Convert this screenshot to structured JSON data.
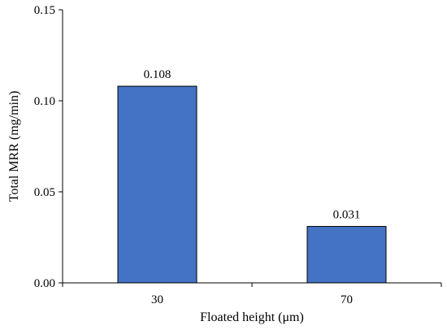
{
  "chart_data": {
    "type": "bar",
    "title": "",
    "xlabel": "Floated height (μm)",
    "ylabel": "Total MRR (mg/min)",
    "categories": [
      "30",
      "70"
    ],
    "values": [
      0.108,
      0.031
    ],
    "data_labels": [
      "0.108",
      "0.031"
    ],
    "ylim": [
      0,
      0.15
    ],
    "yticks": [
      0,
      0.05,
      0.1,
      0.15
    ],
    "ytick_labels": [
      "0.00",
      "0.05",
      "0.10",
      "0.15"
    ],
    "grid": false,
    "legend": "none",
    "bar_color": "#4472C4",
    "bar_edge_color": "#000000"
  }
}
